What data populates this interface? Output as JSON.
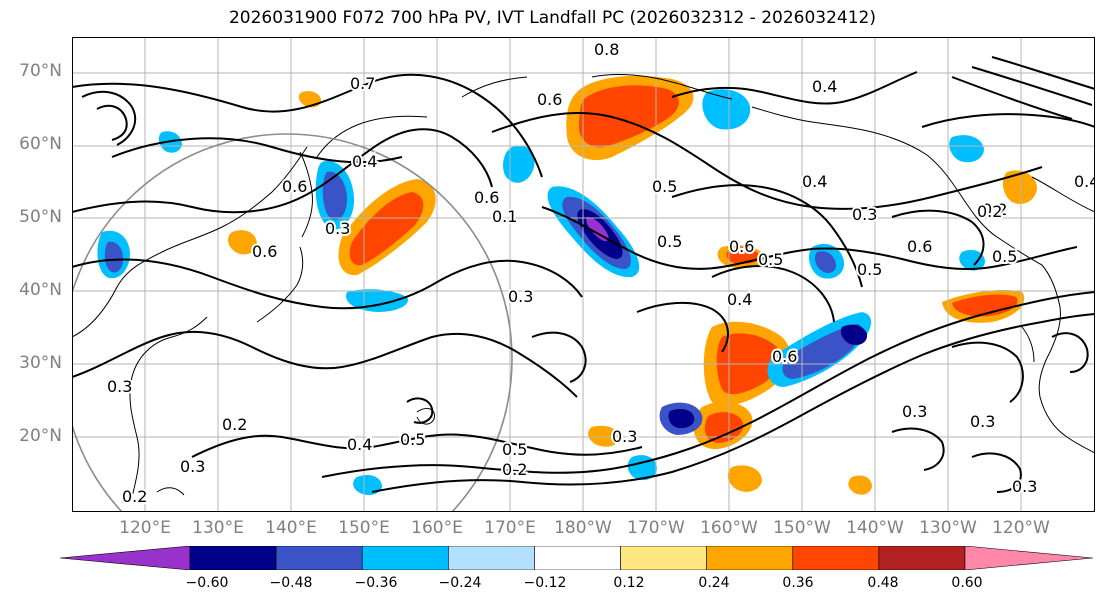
{
  "title": "2026031900 F072 700 hPa PV, IVT Landfall PC (2026032312 - 2026032412)",
  "latitude_labels": [
    "70°N",
    "60°N",
    "50°N",
    "40°N",
    "30°N",
    "20°N"
  ],
  "longitude_labels": [
    "120°E",
    "130°E",
    "140°E",
    "150°E",
    "160°E",
    "170°E",
    "180°W",
    "170°W",
    "160°W",
    "150°W",
    "140°W",
    "130°W",
    "120°W"
  ],
  "colorbar": {
    "tick_labels": [
      "−0.60",
      "−0.48",
      "−0.36",
      "−0.24",
      "−0.12",
      "0.12",
      "0.24",
      "0.36",
      "0.48",
      "0.60"
    ],
    "colors": [
      "#9932cc",
      "#00008b",
      "#3a54c8",
      "#00bfff",
      "#b3e0ff",
      "#ffffff",
      "#ffe680",
      "#ffa500",
      "#ff4500",
      "#b22222",
      "#ff88aa"
    ]
  },
  "contour_labels": [
    "0.7",
    "0.6",
    "0.4",
    "0.8",
    "0.3",
    "0.4",
    "0.6",
    "0.6",
    "0.4",
    "0.3",
    "0.2",
    "0.3",
    "0.5",
    "0.6",
    "0.5",
    "0.4",
    "0.3",
    "0.6",
    "0.5",
    "0.6",
    "0.3",
    "0.2",
    "0.3",
    "0.4",
    "0.5",
    "0.2",
    "0.5",
    "0.2",
    "0.3",
    "0.3",
    "0.3",
    "0.2",
    "0.4",
    "0.6",
    "0.5",
    "0.1",
    "0.5",
    "0.6"
  ]
}
